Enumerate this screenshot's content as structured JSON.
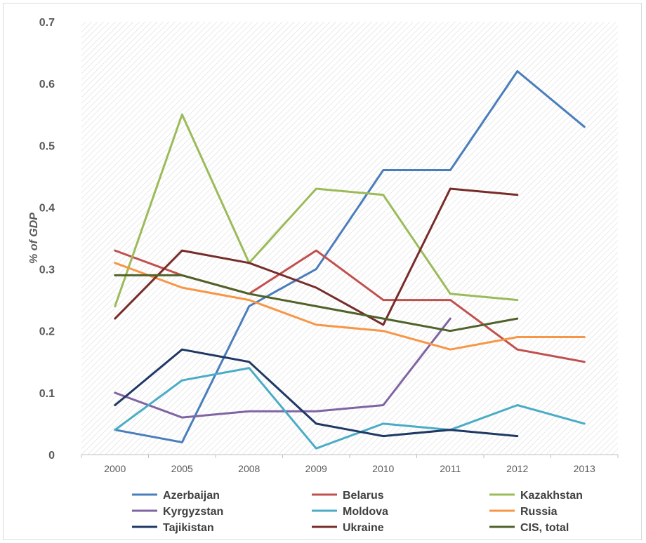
{
  "chart_data": {
    "type": "line",
    "title": "",
    "xlabel": "",
    "ylabel": "% of GDP",
    "categories": [
      "2000",
      "2005",
      "2008",
      "2009",
      "2010",
      "2011",
      "2012",
      "2013"
    ],
    "ylim": [
      0,
      0.7
    ],
    "yticks": [
      "0",
      "0.1",
      "0.2",
      "0.3",
      "0.4",
      "0.5",
      "0.6",
      "0.7"
    ],
    "grid": false,
    "background": "diagonal-hatch",
    "legend_position": "bottom",
    "series": [
      {
        "name": "Azerbaijan",
        "color": "#4a7ebb",
        "values": [
          0.04,
          0.02,
          0.24,
          0.3,
          0.46,
          0.46,
          0.62,
          0.53
        ]
      },
      {
        "name": "Belarus",
        "color": "#c0504d",
        "values": [
          0.33,
          0.29,
          0.26,
          0.33,
          0.25,
          0.25,
          0.17,
          0.15
        ]
      },
      {
        "name": "Kazakhstan",
        "color": "#9bbb59",
        "values": [
          0.24,
          0.55,
          0.31,
          0.43,
          0.42,
          0.26,
          0.25,
          null
        ]
      },
      {
        "name": "Kyrgyzstan",
        "color": "#8064a2",
        "values": [
          0.1,
          0.06,
          0.07,
          0.07,
          0.08,
          0.22,
          null,
          null
        ]
      },
      {
        "name": "Moldova",
        "color": "#4bacc6",
        "values": [
          0.04,
          0.12,
          0.14,
          0.01,
          0.05,
          0.04,
          0.08,
          0.05
        ]
      },
      {
        "name": "Russia",
        "color": "#f79646",
        "values": [
          0.31,
          0.27,
          0.25,
          0.21,
          0.2,
          0.17,
          0.19,
          0.19
        ]
      },
      {
        "name": "Tajikistan",
        "color": "#1f3864",
        "values": [
          0.08,
          0.17,
          0.15,
          0.05,
          0.03,
          0.04,
          0.03,
          null
        ]
      },
      {
        "name": "Ukraine",
        "color": "#772c2a",
        "values": [
          0.22,
          0.33,
          0.31,
          0.27,
          0.21,
          0.43,
          0.42,
          null
        ]
      },
      {
        "name": "CIS, total",
        "color": "#4f6228",
        "values": [
          0.29,
          0.29,
          0.26,
          0.24,
          0.22,
          0.2,
          0.22,
          null
        ]
      }
    ]
  }
}
